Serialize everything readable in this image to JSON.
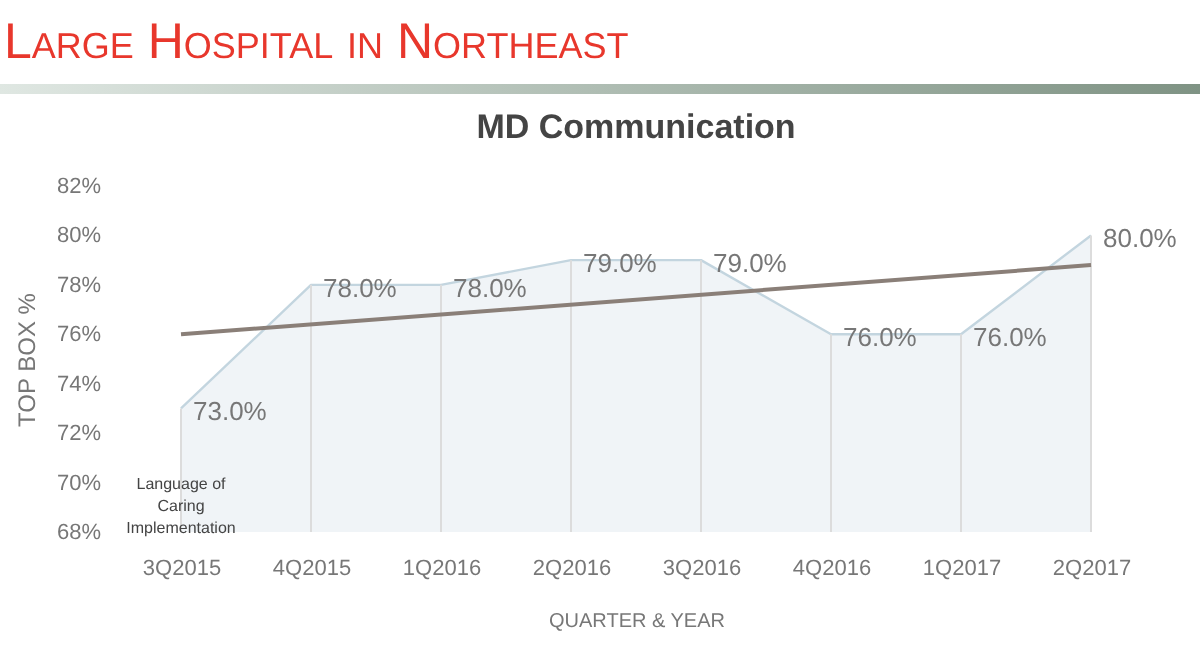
{
  "chart_data": {
    "type": "area",
    "title": "Large Hospital in Northeast",
    "subtitle": "MD Communication",
    "xlabel": "QUARTER & YEAR",
    "ylabel": "TOP BOX %",
    "categories": [
      "3Q2015",
      "4Q2015",
      "1Q2016",
      "2Q2016",
      "3Q2016",
      "4Q2016",
      "1Q2017",
      "2Q2017"
    ],
    "series": [
      {
        "color": "#c3d5df",
        "values": [
          73,
          78,
          78,
          79,
          79,
          76,
          76,
          80
        ],
        "value_labels": [
          "73.0%",
          "78.0%",
          "78.0%",
          "79.0%",
          "79.0%",
          "76.0%",
          "76.0%",
          "80.0%"
        ]
      },
      {
        "type": "line",
        "color": "#8a7f78",
        "x": [
          "3Q2015",
          "2Q2017"
        ],
        "values": [
          76.0,
          78.8
        ]
      }
    ],
    "ylim": [
      68,
      82
    ],
    "yticks": [
      {
        "value": 68,
        "label": "68%"
      },
      {
        "value": 70,
        "label": "70%"
      },
      {
        "value": 72,
        "label": "72%"
      },
      {
        "value": 74,
        "label": "74%"
      },
      {
        "value": 76,
        "label": "76%"
      },
      {
        "value": 78,
        "label": "78%"
      },
      {
        "value": 80,
        "label": "80%"
      },
      {
        "value": 82,
        "label": "82%"
      }
    ],
    "grid": "x",
    "annotations": [
      {
        "text": "Language of Caring Implementation",
        "x": "3Q2015",
        "y": 69.0
      }
    ]
  }
}
